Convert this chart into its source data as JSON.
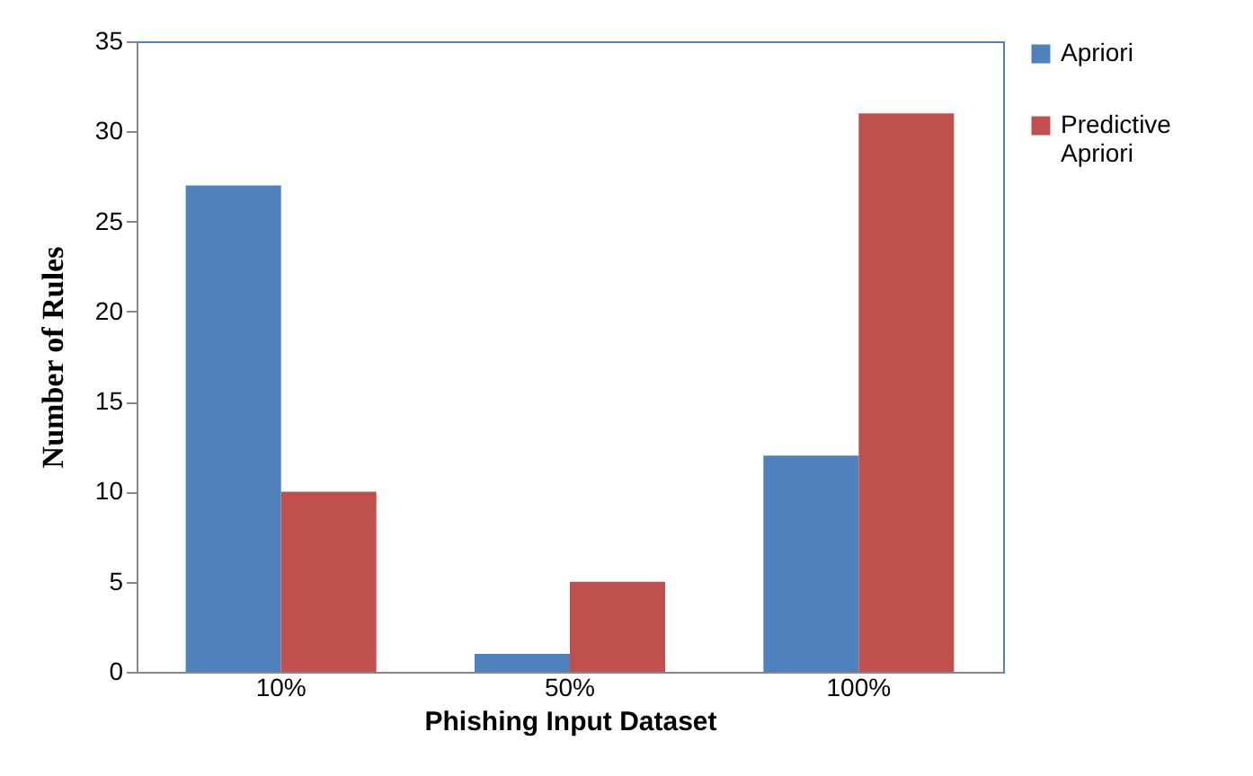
{
  "chart_data": {
    "type": "bar",
    "xlabel": "Phishing Input Dataset",
    "ylabel": "Number  of Rules",
    "categories": [
      "10%",
      "50%",
      "100%"
    ],
    "series": [
      {
        "name": "Apriori",
        "color": "#4f81bd",
        "values": [
          27,
          1,
          12
        ]
      },
      {
        "name": "Predictive Apriori",
        "color": "#c0504d",
        "values": [
          10,
          5,
          31
        ]
      }
    ],
    "ylim": [
      0,
      35
    ],
    "yticks": [
      0,
      5,
      10,
      15,
      20,
      25,
      30,
      35
    ],
    "grid": false,
    "legend": "right"
  }
}
